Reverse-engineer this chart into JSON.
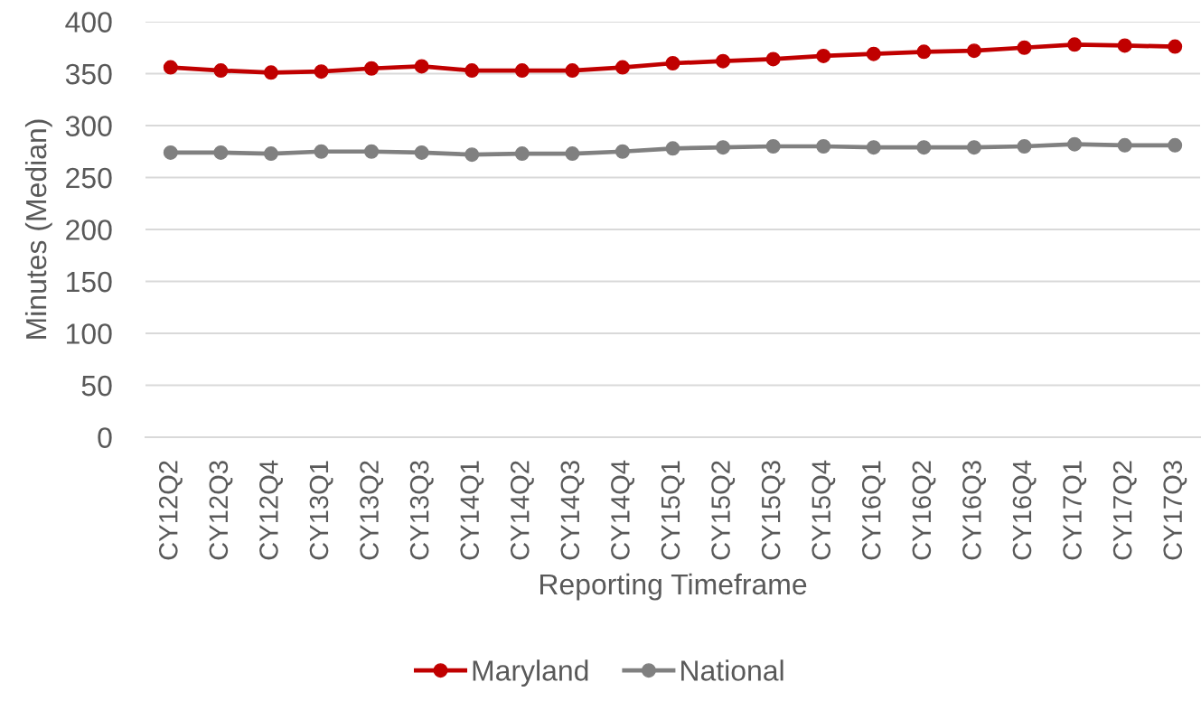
{
  "chart_data": {
    "type": "line",
    "xlabel": "Reporting Timeframe",
    "ylabel": "Minutes (Median)",
    "categories": [
      "CY12Q2",
      "CY12Q3",
      "CY12Q4",
      "CY13Q1",
      "CY13Q2",
      "CY13Q3",
      "CY14Q1",
      "CY14Q2",
      "CY14Q3",
      "CY14Q4",
      "CY15Q1",
      "CY15Q2",
      "CY15Q3",
      "CY15Q4",
      "CY16Q1",
      "CY16Q2",
      "CY16Q3",
      "CY16Q4",
      "CY17Q1",
      "CY17Q2",
      "CY17Q3"
    ],
    "series": [
      {
        "name": "Maryland",
        "color": "#c00000",
        "values": [
          356,
          353,
          351,
          352,
          355,
          357,
          353,
          353,
          353,
          356,
          360,
          362,
          364,
          367,
          369,
          371,
          372,
          375,
          378,
          377,
          376
        ]
      },
      {
        "name": "National",
        "color": "#808080",
        "values": [
          274,
          274,
          273,
          275,
          275,
          274,
          272,
          273,
          273,
          275,
          278,
          279,
          280,
          280,
          279,
          279,
          279,
          280,
          282,
          281,
          281
        ]
      }
    ],
    "ylim": [
      0,
      400
    ],
    "yticks": [
      0,
      50,
      100,
      150,
      200,
      250,
      300,
      350,
      400
    ],
    "grid": "y",
    "legend": "bottom",
    "marker": "circle",
    "line_style": "solid"
  }
}
